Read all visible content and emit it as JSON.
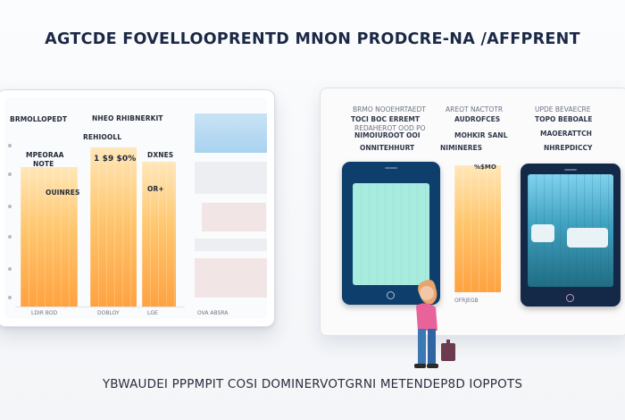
{
  "title": "AGTCDE FOVELLOOPRENTD MNON PRODCRE-NA /AFFPRENT",
  "caption": "YBWAUDEI PPPMPIT COSI DOMINERVOTGRNI METENDEP8D IOPPOTS",
  "left_tablet": {
    "heading_left": "BRMOLLOPEDT",
    "heading_center": "NHEO RHIBNERKIT",
    "sub_center": "REHIOOLL",
    "col1_label_a": "MPEORAA",
    "col1_label_b": "NOTE",
    "col1_label_c": "OUINRES",
    "col2_value": "1 $9 $0%",
    "col3_label": "DXNES",
    "col3_sub": "OR+",
    "bottom_caps": [
      "LDIR BOD",
      "DOBLOY",
      "LGE",
      "OVA ABSRA"
    ]
  },
  "right_panel": {
    "top_left_lines": [
      "BRMO NOOEHRTAEDT",
      "TOCI BOC ERREMT",
      "REDAHEROT OOD PO"
    ],
    "center_lines": [
      "AREOT NACTOTR",
      "AUDROFCES"
    ],
    "mid_left_lines": [
      "NIMOIUROOT OOI",
      "ONNITEHHURT"
    ],
    "mid_center_lines": [
      "MOHKIR SANL",
      "NIMINERES"
    ],
    "right_lines": [
      "UPDE BEVAECRE",
      "TOPO BEBOALE",
      "MAOERATTCH",
      "NHREPDICCY"
    ],
    "bar_value": "%$MO",
    "bar_caption": "OFRJEGB"
  },
  "colors": {
    "accent_orange": "#ffa240",
    "phone_navy": "#0e3f6c",
    "screen_mint": "#a8ecdf",
    "screen_teal": "#2e8ba8"
  }
}
